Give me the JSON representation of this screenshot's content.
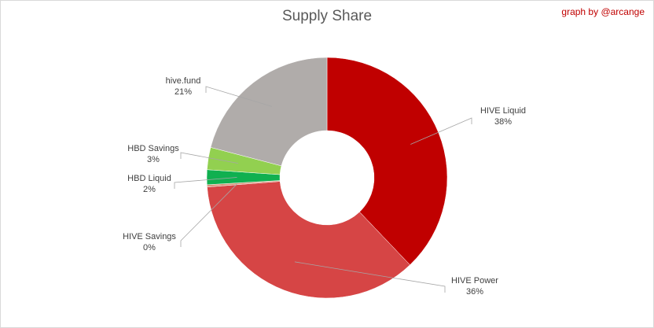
{
  "header": {
    "title": "Supply Share",
    "credit": "graph by @arcange"
  },
  "chart_data": {
    "type": "pie",
    "variant": "doughnut",
    "title": "Supply Share",
    "legend": "none",
    "slices": [
      {
        "label": "HIVE Liquid",
        "value": 38,
        "display": "38%",
        "color": "#c00000"
      },
      {
        "label": "HIVE Power",
        "value": 36,
        "display": "36%",
        "color": "#d64545"
      },
      {
        "label": "HIVE Savings",
        "value": 0.3,
        "display": "0%",
        "color": "#d8967c"
      },
      {
        "label": "HBD Liquid",
        "value": 2,
        "display": "2%",
        "color": "#10b050"
      },
      {
        "label": "HBD Savings",
        "value": 3,
        "display": "3%",
        "color": "#92d050"
      },
      {
        "label": "hive.fund",
        "value": 21,
        "display": "21%",
        "color": "#b0acaa"
      }
    ]
  }
}
